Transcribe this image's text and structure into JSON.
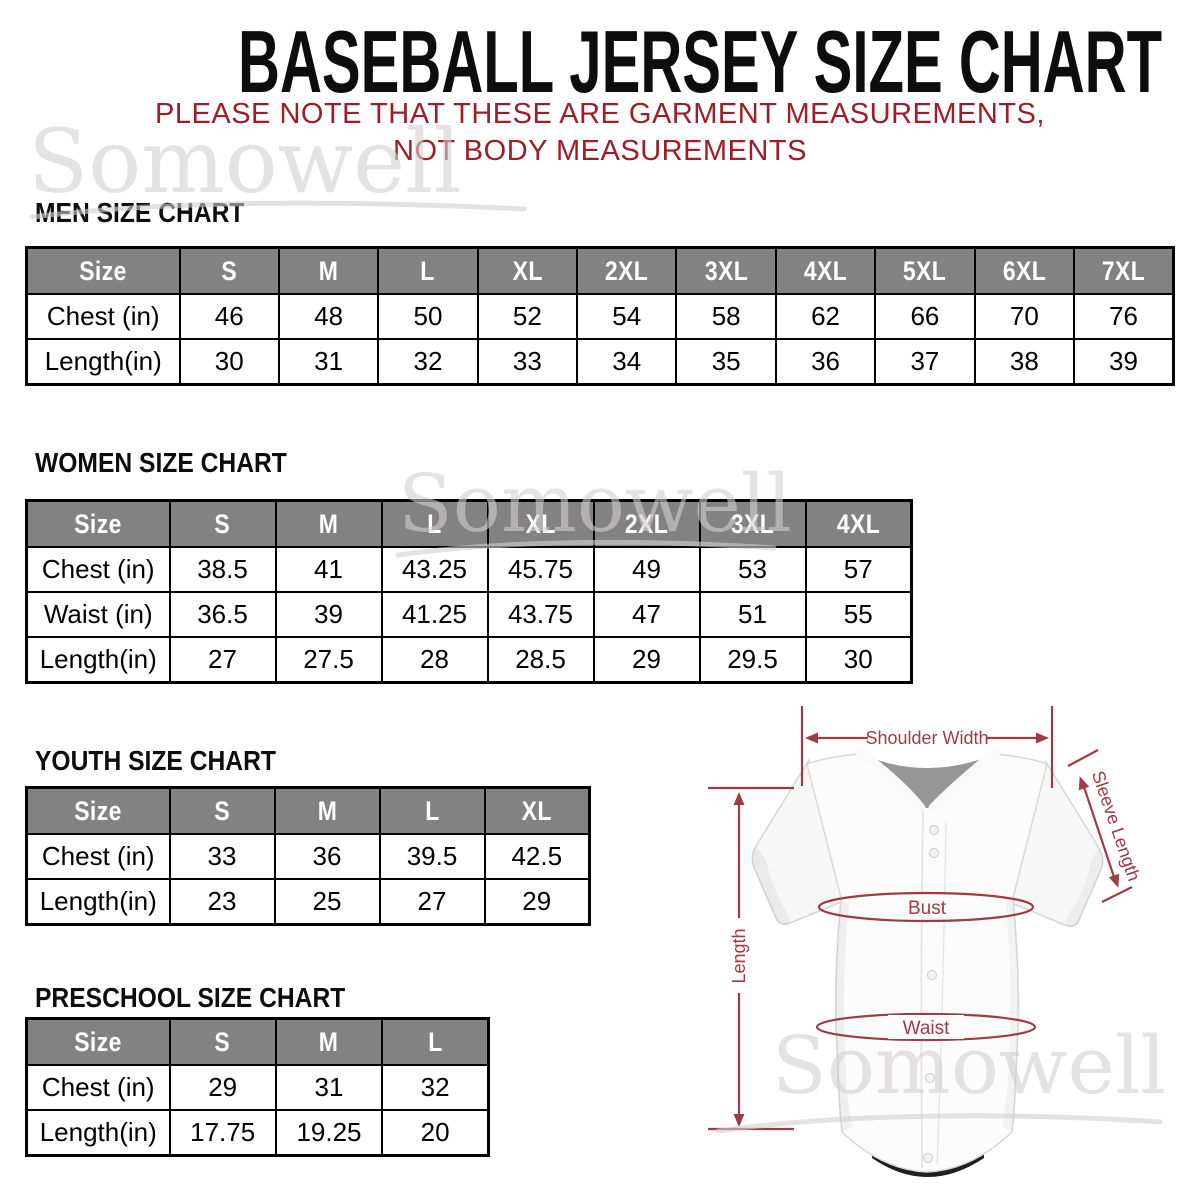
{
  "title": "BASEBALL JERSEY SIZE CHART",
  "subtitle": {
    "line1": "PLEASE NOTE THAT THESE ARE GARMENT MEASUREMENTS,",
    "line2": "NOT BODY MEASUREMENTS"
  },
  "watermark_text": "Somowell",
  "colors": {
    "subtitle_red": "#9f1d28",
    "annotation_red": "#a03a46",
    "table_header_gray": "#828282",
    "watermark_gray": "#d3d0d0"
  },
  "tables": [
    {
      "id": "men",
      "heading": "MEN SIZE CHART",
      "columns": [
        "Size",
        "S",
        "M",
        "L",
        "XL",
        "2XL",
        "3XL",
        "4XL",
        "5XL",
        "6XL",
        "7XL"
      ],
      "rows": [
        {
          "label": "Chest (in)",
          "values": [
            "46",
            "48",
            "50",
            "52",
            "54",
            "58",
            "62",
            "66",
            "70",
            "76"
          ]
        },
        {
          "label": "Length(in)",
          "values": [
            "30",
            "31",
            "32",
            "33",
            "34",
            "35",
            "36",
            "37",
            "38",
            "39"
          ]
        }
      ]
    },
    {
      "id": "women",
      "heading": "WOMEN SIZE CHART",
      "columns": [
        "Size",
        "S",
        "M",
        "L",
        "XL",
        "2XL",
        "3XL",
        "4XL"
      ],
      "rows": [
        {
          "label": "Chest (in)",
          "values": [
            "38.5",
            "41",
            "43.25",
            "45.75",
            "49",
            "53",
            "57"
          ]
        },
        {
          "label": "Waist (in)",
          "values": [
            "36.5",
            "39",
            "41.25",
            "43.75",
            "47",
            "51",
            "55"
          ]
        },
        {
          "label": "Length(in)",
          "values": [
            "27",
            "27.5",
            "28",
            "28.5",
            "29",
            "29.5",
            "30"
          ]
        }
      ]
    },
    {
      "id": "youth",
      "heading": "YOUTH SIZE CHART",
      "columns": [
        "Size",
        "S",
        "M",
        "L",
        "XL"
      ],
      "rows": [
        {
          "label": "Chest (in)",
          "values": [
            "33",
            "36",
            "39.5",
            "42.5"
          ]
        },
        {
          "label": "Length(in)",
          "values": [
            "23",
            "25",
            "27",
            "29"
          ]
        }
      ]
    },
    {
      "id": "preschool",
      "heading": "PRESCHOOL SIZE CHART",
      "columns": [
        "Size",
        "S",
        "M",
        "L"
      ],
      "rows": [
        {
          "label": "Chest (in)",
          "values": [
            "29",
            "31",
            "32"
          ]
        },
        {
          "label": "Length(in)",
          "values": [
            "17.75",
            "19.25",
            "20"
          ]
        }
      ]
    }
  ],
  "diagram": {
    "labels": {
      "shoulder_width": "Shoulder Width",
      "sleeve_length": "Sleeve Length",
      "bust": "Bust",
      "waist": "Waist",
      "length": "Length"
    }
  }
}
